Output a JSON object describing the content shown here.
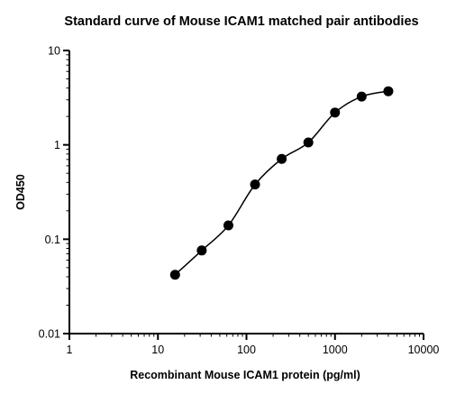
{
  "chart_data": {
    "type": "scatter",
    "title": "Standard curve of Mouse ICAM1 matched pair antibodies",
    "xlabel": "Recombinant Mouse ICAM1 protein (pg/ml)",
    "ylabel": "OD450",
    "xscale": "log",
    "yscale": "log",
    "xlim": [
      1,
      10000
    ],
    "ylim": [
      0.01,
      10
    ],
    "xticks": [
      1,
      10,
      100,
      1000,
      10000
    ],
    "xtick_labels": [
      "1",
      "10",
      "100",
      "1000",
      "10000"
    ],
    "yticks": [
      0.01,
      0.1,
      1,
      10
    ],
    "ytick_labels": [
      "0.01",
      "0.1",
      "1",
      "10"
    ],
    "grid": false,
    "series": [
      {
        "x": [
          15.625,
          31.25,
          62.5,
          125,
          250,
          500,
          1000,
          2000,
          4000
        ],
        "y": [
          0.042,
          0.076,
          0.14,
          0.38,
          0.71,
          1.06,
          2.2,
          3.25,
          3.7
        ],
        "marker": "filled-circle",
        "color": "#000000",
        "fit_curve": true
      }
    ]
  }
}
